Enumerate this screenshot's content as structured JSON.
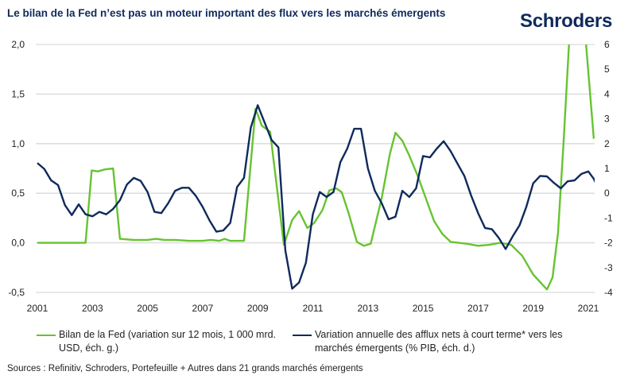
{
  "header": {
    "title": "Le bilan de la Fed n’est pas un moteur important des flux vers les marchés émergents",
    "brand": "Schroders"
  },
  "footer": {
    "sources": "Sources : Refinitiv, Schroders, Portefeuille + Autres dans 21 grands marchés émergents"
  },
  "colors": {
    "fed": "#66c430",
    "flows": "#0f2a5c",
    "grid": "#d9d9d9"
  },
  "chart_data": {
    "type": "line",
    "title": "Le bilan de la Fed n’est pas un moteur important des flux vers les marchés émergents",
    "xlabel": "",
    "ylabel_left": "",
    "ylabel_right": "",
    "x_ticks": [
      "2001",
      "2003",
      "2005",
      "2007",
      "2009",
      "2011",
      "2013",
      "2015",
      "2017",
      "2019",
      "2021"
    ],
    "x_range": [
      2001,
      2021.2
    ],
    "y_left": {
      "range": [
        -0.5,
        2.0
      ],
      "ticks": [
        "-0,5",
        "0,0",
        "0,5",
        "1,0",
        "1,5",
        "2,0"
      ],
      "tick_values": [
        -0.5,
        0,
        0.5,
        1.0,
        1.5,
        2.0
      ]
    },
    "y_right": {
      "range": [
        -4,
        6
      ],
      "ticks": [
        "-4",
        "-3",
        "-2",
        "-1",
        "0",
        "1",
        "2",
        "3",
        "4",
        "5",
        "6"
      ],
      "tick_values": [
        -4,
        -3,
        -2,
        -1,
        0,
        1,
        2,
        3,
        4,
        5,
        6
      ]
    },
    "grid": true,
    "legend_position": "bottom",
    "series": [
      {
        "name": "Bilan de la Fed (variation sur 12 mois, 1 000 mrd. USD, éch. g.)",
        "axis": "left",
        "points": [
          [
            2001.0,
            0.0
          ],
          [
            2001.5,
            0.0
          ],
          [
            2002.0,
            0.0
          ],
          [
            2002.5,
            0.0
          ],
          [
            2002.75,
            0.0
          ],
          [
            2002.97,
            0.73
          ],
          [
            2003.2,
            0.72
          ],
          [
            2003.45,
            0.74
          ],
          [
            2003.75,
            0.75
          ],
          [
            2004.0,
            0.04
          ],
          [
            2004.5,
            0.03
          ],
          [
            2005.0,
            0.03
          ],
          [
            2005.3,
            0.04
          ],
          [
            2005.6,
            0.03
          ],
          [
            2006.0,
            0.03
          ],
          [
            2006.5,
            0.02
          ],
          [
            2007.0,
            0.02
          ],
          [
            2007.3,
            0.03
          ],
          [
            2007.6,
            0.02
          ],
          [
            2007.8,
            0.04
          ],
          [
            2008.0,
            0.02
          ],
          [
            2008.5,
            0.02
          ],
          [
            2008.92,
            1.35
          ],
          [
            2009.15,
            1.18
          ],
          [
            2009.45,
            1.12
          ],
          [
            2009.95,
            -0.02
          ],
          [
            2010.25,
            0.23
          ],
          [
            2010.5,
            0.32
          ],
          [
            2010.8,
            0.15
          ],
          [
            2011.05,
            0.2
          ],
          [
            2011.35,
            0.33
          ],
          [
            2011.6,
            0.53
          ],
          [
            2011.85,
            0.55
          ],
          [
            2012.05,
            0.51
          ],
          [
            2012.3,
            0.3
          ],
          [
            2012.6,
            0.01
          ],
          [
            2012.85,
            -0.03
          ],
          [
            2013.1,
            -0.01
          ],
          [
            2013.5,
            0.45
          ],
          [
            2013.8,
            0.9
          ],
          [
            2014.0,
            1.11
          ],
          [
            2014.25,
            1.03
          ],
          [
            2014.5,
            0.88
          ],
          [
            2014.8,
            0.68
          ],
          [
            2015.1,
            0.45
          ],
          [
            2015.4,
            0.22
          ],
          [
            2015.7,
            0.09
          ],
          [
            2016.0,
            0.01
          ],
          [
            2016.3,
            0.0
          ],
          [
            2016.6,
            -0.01
          ],
          [
            2017.0,
            -0.03
          ],
          [
            2017.4,
            -0.02
          ],
          [
            2017.8,
            0.0
          ],
          [
            2018.2,
            -0.02
          ],
          [
            2018.6,
            -0.13
          ],
          [
            2019.0,
            -0.32
          ],
          [
            2019.5,
            -0.47
          ],
          [
            2019.7,
            -0.35
          ],
          [
            2019.9,
            0.1
          ],
          [
            2020.1,
            1.0
          ],
          [
            2020.3,
            2.0
          ],
          [
            2020.5,
            2.8
          ],
          [
            2020.75,
            2.6
          ],
          [
            2020.92,
            2.0
          ],
          [
            2021.2,
            1.05
          ]
        ]
      },
      {
        "name": "Variation annuelle des afflux nets à court terme* vers les marchés émergents (% PIB, éch. d.)",
        "axis": "right",
        "points": [
          [
            2001.0,
            1.22
          ],
          [
            2001.25,
            0.98
          ],
          [
            2001.5,
            0.52
          ],
          [
            2001.75,
            0.33
          ],
          [
            2002.0,
            -0.48
          ],
          [
            2002.25,
            -0.88
          ],
          [
            2002.5,
            -0.45
          ],
          [
            2002.75,
            -0.85
          ],
          [
            2003.0,
            -0.93
          ],
          [
            2003.25,
            -0.75
          ],
          [
            2003.5,
            -0.85
          ],
          [
            2003.75,
            -0.63
          ],
          [
            2004.0,
            -0.28
          ],
          [
            2004.25,
            0.35
          ],
          [
            2004.5,
            0.62
          ],
          [
            2004.75,
            0.5
          ],
          [
            2005.0,
            0.05
          ],
          [
            2005.25,
            -0.75
          ],
          [
            2005.5,
            -0.8
          ],
          [
            2005.75,
            -0.4
          ],
          [
            2006.0,
            0.1
          ],
          [
            2006.25,
            0.22
          ],
          [
            2006.5,
            0.22
          ],
          [
            2006.75,
            -0.1
          ],
          [
            2007.0,
            -0.55
          ],
          [
            2007.25,
            -1.1
          ],
          [
            2007.5,
            -1.55
          ],
          [
            2007.75,
            -1.5
          ],
          [
            2008.0,
            -1.2
          ],
          [
            2008.25,
            0.25
          ],
          [
            2008.5,
            0.62
          ],
          [
            2008.75,
            2.65
          ],
          [
            2009.0,
            3.55
          ],
          [
            2009.25,
            2.85
          ],
          [
            2009.5,
            2.15
          ],
          [
            2009.75,
            1.85
          ],
          [
            2010.0,
            -2.3
          ],
          [
            2010.25,
            -3.85
          ],
          [
            2010.5,
            -3.6
          ],
          [
            2010.75,
            -2.8
          ],
          [
            2011.0,
            -0.85
          ],
          [
            2011.25,
            0.05
          ],
          [
            2011.5,
            -0.15
          ],
          [
            2011.75,
            0.05
          ],
          [
            2012.0,
            1.25
          ],
          [
            2012.25,
            1.8
          ],
          [
            2012.5,
            2.6
          ],
          [
            2012.75,
            2.6
          ],
          [
            2013.0,
            1.0
          ],
          [
            2013.25,
            0.1
          ],
          [
            2013.5,
            -0.4
          ],
          [
            2013.75,
            -1.05
          ],
          [
            2014.0,
            -0.95
          ],
          [
            2014.25,
            0.1
          ],
          [
            2014.5,
            -0.15
          ],
          [
            2014.75,
            0.2
          ],
          [
            2015.0,
            1.5
          ],
          [
            2015.25,
            1.45
          ],
          [
            2015.5,
            1.8
          ],
          [
            2015.75,
            2.1
          ],
          [
            2016.0,
            1.7
          ],
          [
            2016.25,
            1.2
          ],
          [
            2016.5,
            0.7
          ],
          [
            2016.75,
            -0.1
          ],
          [
            2017.0,
            -0.8
          ],
          [
            2017.25,
            -1.4
          ],
          [
            2017.5,
            -1.45
          ],
          [
            2017.75,
            -1.8
          ],
          [
            2018.0,
            -2.25
          ],
          [
            2018.25,
            -1.75
          ],
          [
            2018.5,
            -1.3
          ],
          [
            2018.75,
            -0.55
          ],
          [
            2019.0,
            0.4
          ],
          [
            2019.25,
            0.7
          ],
          [
            2019.5,
            0.68
          ],
          [
            2019.75,
            0.42
          ],
          [
            2020.0,
            0.2
          ],
          [
            2020.25,
            0.48
          ],
          [
            2020.5,
            0.52
          ],
          [
            2020.75,
            0.78
          ],
          [
            2021.0,
            0.88
          ],
          [
            2021.2,
            0.58
          ],
          [
            2021.4,
            0.1
          ]
        ]
      }
    ]
  }
}
